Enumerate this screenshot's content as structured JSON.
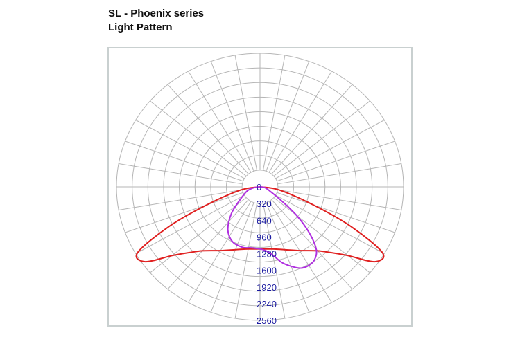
{
  "header": {
    "title_line1": "SL - Phoenix series",
    "title_line2": "Light Pattern"
  },
  "colors": {
    "grid": "#b5b5b5",
    "frame": "#c9d0d0",
    "tick_text": "#1a1aa0"
  },
  "chart_data": {
    "type": "polar-line",
    "r_max": 2560,
    "r_ticks": [
      0,
      320,
      640,
      960,
      1280,
      1600,
      1920,
      2240,
      2560
    ],
    "angular_grid_step_deg": 10,
    "grid": true,
    "series": [
      {
        "color": "#e02020",
        "points": [
          {
            "angle": -90,
            "r": 0
          },
          {
            "angle": -80,
            "r": 350
          },
          {
            "angle": -70,
            "r": 1010
          },
          {
            "angle": -65,
            "r": 1780
          },
          {
            "angle": -60,
            "r": 2520
          },
          {
            "angle": -55,
            "r": 2500
          },
          {
            "angle": -50,
            "r": 2050
          },
          {
            "angle": -45,
            "r": 1780
          },
          {
            "angle": -40,
            "r": 1600
          },
          {
            "angle": -30,
            "r": 1410
          },
          {
            "angle": -20,
            "r": 1280
          },
          {
            "angle": -10,
            "r": 1210
          },
          {
            "angle": 0,
            "r": 1190
          },
          {
            "angle": 10,
            "r": 1210
          },
          {
            "angle": 20,
            "r": 1280
          },
          {
            "angle": 30,
            "r": 1410
          },
          {
            "angle": 40,
            "r": 1600
          },
          {
            "angle": 45,
            "r": 1780
          },
          {
            "angle": 50,
            "r": 2050
          },
          {
            "angle": 55,
            "r": 2500
          },
          {
            "angle": 60,
            "r": 2520
          },
          {
            "angle": 65,
            "r": 1780
          },
          {
            "angle": 70,
            "r": 1010
          },
          {
            "angle": 80,
            "r": 350
          },
          {
            "angle": 90,
            "r": 0
          }
        ]
      },
      {
        "color": "#b030e0",
        "points": [
          {
            "angle": -90,
            "r": 0
          },
          {
            "angle": -80,
            "r": 130
          },
          {
            "angle": -70,
            "r": 250
          },
          {
            "angle": -55,
            "r": 440
          },
          {
            "angle": -45,
            "r": 720
          },
          {
            "angle": -35,
            "r": 1000
          },
          {
            "angle": -25,
            "r": 1160
          },
          {
            "angle": -15,
            "r": 1200
          },
          {
            "angle": -8,
            "r": 1180
          },
          {
            "angle": 0,
            "r": 1190
          },
          {
            "angle": 5,
            "r": 1230
          },
          {
            "angle": 10,
            "r": 1330
          },
          {
            "angle": 15,
            "r": 1500
          },
          {
            "angle": 20,
            "r": 1620
          },
          {
            "angle": 25,
            "r": 1720
          },
          {
            "angle": 30,
            "r": 1740
          },
          {
            "angle": 35,
            "r": 1700
          },
          {
            "angle": 40,
            "r": 1560
          },
          {
            "angle": 45,
            "r": 1240
          },
          {
            "angle": 50,
            "r": 850
          },
          {
            "angle": 55,
            "r": 480
          },
          {
            "angle": 65,
            "r": 200
          },
          {
            "angle": 80,
            "r": 90
          },
          {
            "angle": 90,
            "r": 0
          }
        ]
      }
    ]
  }
}
